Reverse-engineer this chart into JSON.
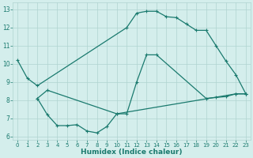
{
  "line1_x": [
    0,
    1,
    2,
    11,
    12,
    13,
    14,
    15,
    16,
    17,
    18,
    19,
    20,
    21,
    22,
    23
  ],
  "line1_y": [
    10.2,
    9.2,
    8.8,
    12.0,
    12.8,
    12.9,
    12.9,
    12.6,
    12.55,
    12.2,
    11.85,
    11.85,
    11.0,
    10.15,
    9.4,
    8.35
  ],
  "line2_x": [
    2,
    3,
    10,
    11,
    12,
    13,
    14,
    19,
    20,
    21,
    22,
    23
  ],
  "line2_y": [
    8.1,
    8.55,
    7.25,
    7.25,
    9.0,
    10.5,
    10.5,
    8.1,
    8.15,
    8.2,
    8.35,
    8.35
  ],
  "line3_x": [
    2,
    3,
    4,
    5,
    6,
    7,
    8,
    9,
    10,
    22,
    23
  ],
  "line3_y": [
    8.1,
    7.2,
    6.6,
    6.6,
    6.65,
    6.3,
    6.2,
    6.55,
    7.25,
    8.35,
    8.35
  ],
  "color": "#1a7a6e",
  "bg_color": "#d4eeec",
  "grid_color": "#afd4d0",
  "xlabel": "Humidex (Indice chaleur)",
  "xlim": [
    -0.5,
    23.5
  ],
  "ylim": [
    5.8,
    13.4
  ],
  "xticks": [
    0,
    1,
    2,
    3,
    4,
    5,
    6,
    7,
    8,
    9,
    10,
    11,
    12,
    13,
    14,
    15,
    16,
    17,
    18,
    19,
    20,
    21,
    22,
    23
  ],
  "yticks": [
    6,
    7,
    8,
    9,
    10,
    11,
    12,
    13
  ],
  "marker": "+",
  "markersize": 3.5,
  "linewidth": 0.9
}
